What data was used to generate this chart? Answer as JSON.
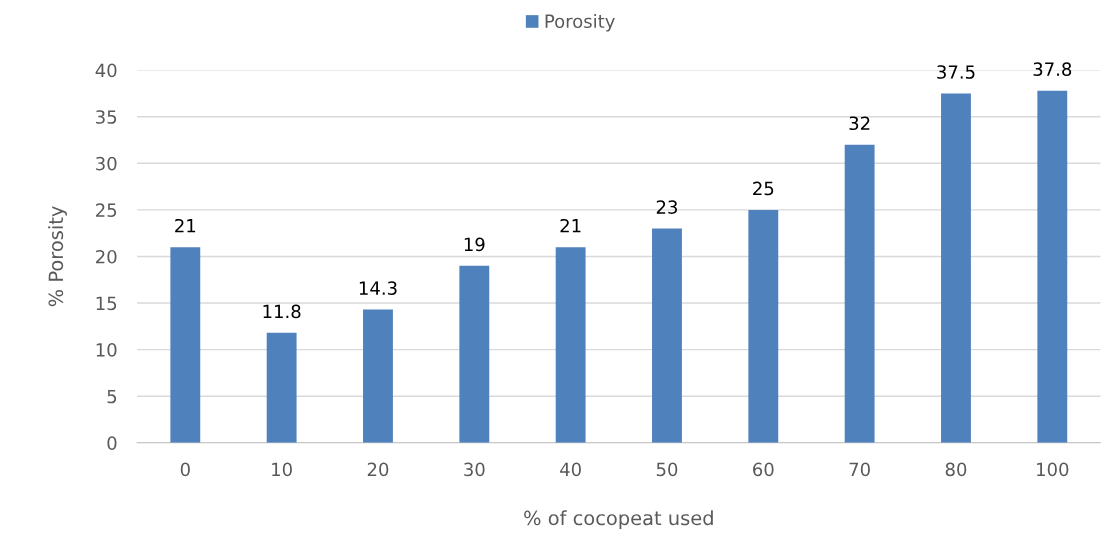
{
  "chart_data": {
    "type": "bar",
    "xlabel": "% of cocopeat used",
    "ylabel": "% Porosity",
    "categories": [
      "0",
      "10",
      "20",
      "30",
      "40",
      "50",
      "60",
      "70",
      "80",
      "100"
    ],
    "series": [
      {
        "name": "Porosity",
        "color": "#4f81bd",
        "values": [
          21,
          11.8,
          14.3,
          19,
          21,
          23,
          25,
          32,
          37.5,
          37.8
        ]
      }
    ],
    "ylim": [
      0,
      40
    ],
    "yticks": [
      0,
      5,
      10,
      15,
      20,
      25,
      30,
      35,
      40
    ],
    "grid": "y",
    "legend": "top",
    "data_labels": true
  }
}
